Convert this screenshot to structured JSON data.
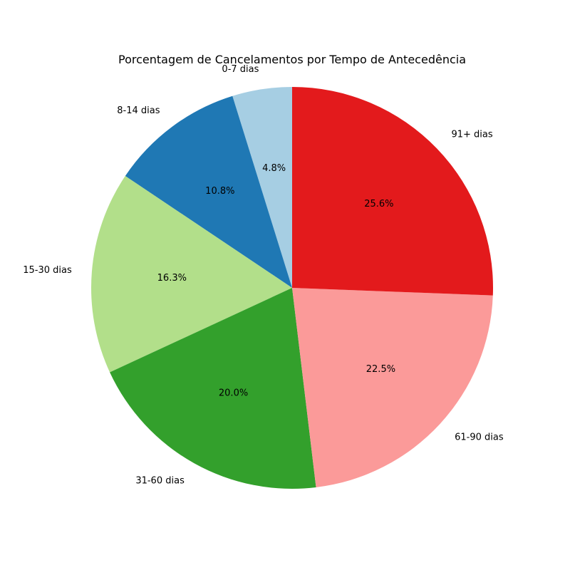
{
  "chart_data": {
    "type": "pie",
    "title": "Porcentagem de Cancelamentos por Tempo de Antecedência",
    "categories": [
      "0-7 dias",
      "8-14 dias",
      "15-30 dias",
      "31-60 dias",
      "61-90 dias",
      "91+ dias"
    ],
    "values": [
      4.8,
      10.8,
      16.3,
      20.0,
      22.5,
      25.6
    ],
    "value_labels": [
      "4.8%",
      "10.8%",
      "16.3%",
      "20.0%",
      "22.5%",
      "25.6%"
    ],
    "colors": [
      "#a6cee3",
      "#1f78b4",
      "#b2df8a",
      "#33a02c",
      "#fb9a99",
      "#e31a1c"
    ],
    "start_angle_deg": 90,
    "direction": "counterclockwise",
    "legend": "none"
  }
}
